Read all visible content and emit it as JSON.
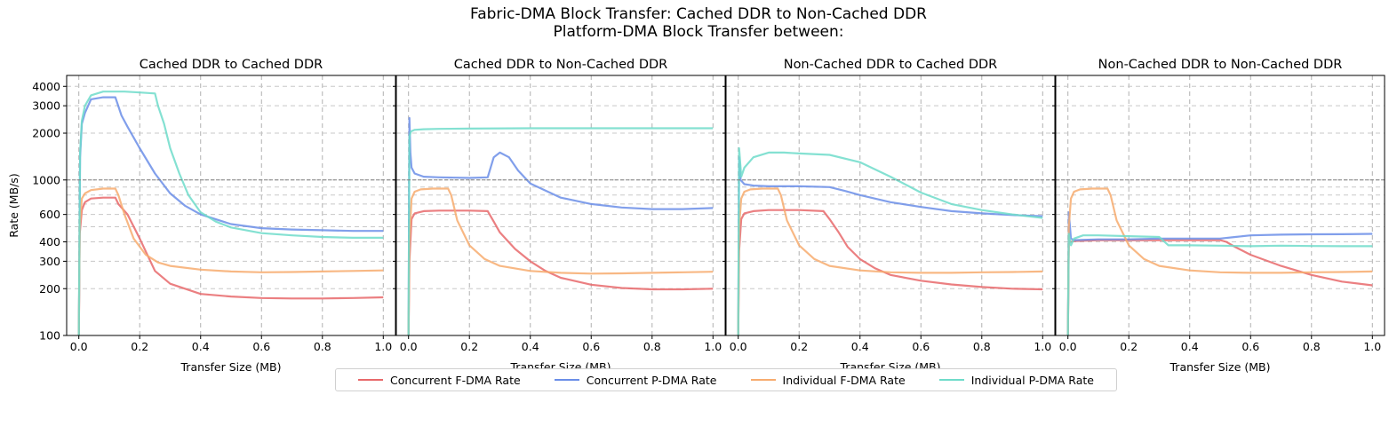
{
  "figure": {
    "title_line1": "Fabric-DMA Block Transfer: Cached DDR to Non-Cached DDR",
    "title_line2": "Platform-DMA Block Transfer between:"
  },
  "colors": {
    "concurrent_fdma": "#e8696b",
    "concurrent_pdma": "#6b8ee8",
    "individual_fdma": "#f7ac6f",
    "individual_pdma": "#6fdcca"
  },
  "chart_data": [
    {
      "type": "line",
      "title": "Cached DDR to Cached DDR",
      "xlabel": "Transfer Size (MB)",
      "ylabel": "Rate (MB/s)",
      "xlim": [
        -0.04,
        1.04
      ],
      "ylim": [
        100,
        4700
      ],
      "yscale": "log",
      "grid": true,
      "reference_line": 1000,
      "xticks": [
        "0.0",
        "0.2",
        "0.4",
        "0.6",
        "0.8",
        "1.0"
      ],
      "yticks": [
        "100",
        "200",
        "300",
        "400",
        "600",
        "1000",
        "2000",
        "3000",
        "4000"
      ],
      "series": [
        {
          "name": "Concurrent F-DMA Rate",
          "x": [
            0,
            0.003,
            0.01,
            0.02,
            0.04,
            0.08,
            0.12,
            0.13,
            0.16,
            0.2,
            0.25,
            0.3,
            0.4,
            0.5,
            0.6,
            0.7,
            0.8,
            0.9,
            1.0
          ],
          "y": [
            100,
            450,
            640,
            720,
            760,
            770,
            770,
            700,
            600,
            420,
            260,
            215,
            185,
            178,
            174,
            173,
            173,
            174,
            176
          ]
        },
        {
          "name": "Concurrent P-DMA Rate",
          "x": [
            0,
            0.004,
            0.01,
            0.02,
            0.04,
            0.08,
            0.12,
            0.14,
            0.16,
            0.2,
            0.25,
            0.3,
            0.35,
            0.4,
            0.5,
            0.6,
            0.7,
            0.8,
            0.9,
            1.0
          ],
          "y": [
            100,
            1400,
            2300,
            2700,
            3300,
            3400,
            3400,
            2600,
            2200,
            1600,
            1100,
            820,
            680,
            600,
            520,
            490,
            480,
            475,
            470,
            470
          ]
        },
        {
          "name": "Individual F-DMA Rate",
          "x": [
            0,
            0.003,
            0.01,
            0.02,
            0.04,
            0.08,
            0.12,
            0.13,
            0.15,
            0.18,
            0.22,
            0.26,
            0.3,
            0.4,
            0.5,
            0.6,
            0.7,
            0.8,
            0.9,
            1.0
          ],
          "y": [
            100,
            500,
            760,
            820,
            860,
            880,
            880,
            800,
            600,
            420,
            330,
            295,
            280,
            265,
            258,
            255,
            256,
            258,
            260,
            262
          ]
        },
        {
          "name": "Individual P-DMA Rate",
          "x": [
            0,
            0.004,
            0.01,
            0.02,
            0.04,
            0.08,
            0.15,
            0.2,
            0.25,
            0.26,
            0.28,
            0.3,
            0.33,
            0.36,
            0.4,
            0.45,
            0.5,
            0.6,
            0.7,
            0.8,
            0.9,
            1.0
          ],
          "y": [
            100,
            1500,
            2400,
            3000,
            3500,
            3700,
            3700,
            3650,
            3600,
            3000,
            2300,
            1600,
            1100,
            800,
            620,
            540,
            495,
            455,
            440,
            430,
            425,
            425
          ]
        }
      ]
    },
    {
      "type": "line",
      "title": "Cached DDR to Non-Cached DDR",
      "xlabel": "Transfer Size (MB)",
      "ylabel": "",
      "xlim": [
        -0.04,
        1.04
      ],
      "ylim": [
        100,
        4700
      ],
      "yscale": "log",
      "grid": true,
      "reference_line": 1000,
      "xticks": [
        "0.0",
        "0.2",
        "0.4",
        "0.6",
        "0.8",
        "1.0"
      ],
      "yticks": [],
      "series": [
        {
          "name": "Concurrent F-DMA Rate",
          "x": [
            0,
            0.003,
            0.01,
            0.02,
            0.05,
            0.1,
            0.2,
            0.26,
            0.28,
            0.3,
            0.35,
            0.4,
            0.45,
            0.5,
            0.6,
            0.7,
            0.8,
            0.9,
            1.0
          ],
          "y": [
            100,
            300,
            560,
            610,
            630,
            635,
            635,
            630,
            540,
            460,
            360,
            300,
            260,
            235,
            212,
            202,
            198,
            198,
            200
          ]
        },
        {
          "name": "Concurrent P-DMA Rate",
          "x": [
            0,
            0.003,
            0.006,
            0.01,
            0.02,
            0.05,
            0.1,
            0.2,
            0.26,
            0.28,
            0.3,
            0.33,
            0.36,
            0.4,
            0.5,
            0.6,
            0.7,
            0.8,
            0.9,
            1.0
          ],
          "y": [
            100,
            2500,
            1500,
            1200,
            1100,
            1050,
            1040,
            1030,
            1040,
            1400,
            1500,
            1400,
            1150,
            950,
            770,
            700,
            665,
            650,
            650,
            660
          ]
        },
        {
          "name": "Individual F-DMA Rate",
          "x": [
            0,
            0.003,
            0.01,
            0.02,
            0.04,
            0.08,
            0.13,
            0.14,
            0.16,
            0.2,
            0.25,
            0.3,
            0.4,
            0.5,
            0.6,
            0.7,
            0.8,
            0.9,
            1.0
          ],
          "y": [
            100,
            400,
            760,
            840,
            870,
            880,
            880,
            800,
            550,
            380,
            310,
            280,
            260,
            253,
            250,
            251,
            253,
            255,
            257
          ]
        },
        {
          "name": "Individual P-DMA Rate",
          "x": [
            0,
            0.003,
            0.008,
            0.02,
            0.05,
            0.1,
            0.2,
            0.4,
            0.6,
            0.8,
            1.0
          ],
          "y": [
            100,
            1900,
            2050,
            2100,
            2120,
            2130,
            2140,
            2150,
            2150,
            2150,
            2150
          ]
        }
      ]
    },
    {
      "type": "line",
      "title": "Non-Cached DDR to Cached DDR",
      "xlabel": "Transfer Size (MB)",
      "ylabel": "",
      "xlim": [
        -0.04,
        1.04
      ],
      "ylim": [
        100,
        4700
      ],
      "yscale": "log",
      "grid": true,
      "reference_line": 1000,
      "xticks": [
        "0.0",
        "0.2",
        "0.4",
        "0.6",
        "0.8",
        "1.0"
      ],
      "yticks": [],
      "series": [
        {
          "name": "Concurrent F-DMA Rate",
          "x": [
            0,
            0.003,
            0.01,
            0.02,
            0.05,
            0.1,
            0.2,
            0.28,
            0.3,
            0.33,
            0.36,
            0.4,
            0.45,
            0.5,
            0.6,
            0.7,
            0.8,
            0.9,
            1.0
          ],
          "y": [
            100,
            350,
            560,
            610,
            630,
            640,
            640,
            630,
            560,
            460,
            370,
            310,
            270,
            245,
            225,
            213,
            205,
            200,
            198
          ]
        },
        {
          "name": "Concurrent P-DMA Rate",
          "x": [
            0,
            0.003,
            0.008,
            0.02,
            0.05,
            0.1,
            0.2,
            0.3,
            0.35,
            0.4,
            0.5,
            0.6,
            0.7,
            0.8,
            0.9,
            1.0
          ],
          "y": [
            100,
            1400,
            1000,
            940,
            920,
            910,
            910,
            900,
            850,
            800,
            720,
            670,
            630,
            610,
            595,
            585
          ]
        },
        {
          "name": "Individual F-DMA Rate",
          "x": [
            0,
            0.003,
            0.01,
            0.02,
            0.04,
            0.08,
            0.13,
            0.14,
            0.16,
            0.2,
            0.25,
            0.3,
            0.4,
            0.5,
            0.6,
            0.7,
            0.8,
            0.9,
            1.0
          ],
          "y": [
            100,
            500,
            760,
            840,
            870,
            880,
            880,
            800,
            550,
            380,
            310,
            280,
            262,
            255,
            253,
            253,
            255,
            256,
            258
          ]
        },
        {
          "name": "Individual P-DMA Rate",
          "x": [
            0,
            0.003,
            0.01,
            0.02,
            0.05,
            0.1,
            0.15,
            0.2,
            0.3,
            0.4,
            0.5,
            0.6,
            0.7,
            0.8,
            0.9,
            1.0
          ],
          "y": [
            100,
            1600,
            1050,
            1200,
            1400,
            1500,
            1500,
            1480,
            1450,
            1300,
            1050,
            830,
            700,
            640,
            600,
            570
          ]
        }
      ]
    },
    {
      "type": "line",
      "title": "Non-Cached DDR to Non-Cached DDR",
      "xlabel": "Transfer Size (MB)",
      "ylabel": "",
      "xlim": [
        -0.04,
        1.04
      ],
      "ylim": [
        100,
        4700
      ],
      "yscale": "log",
      "grid": true,
      "reference_line": 1000,
      "xticks": [
        "0.0",
        "0.2",
        "0.4",
        "0.6",
        "0.8",
        "1.0"
      ],
      "yticks": [],
      "series": [
        {
          "name": "Concurrent F-DMA Rate",
          "x": [
            0,
            0.003,
            0.01,
            0.02,
            0.1,
            0.3,
            0.5,
            0.52,
            0.55,
            0.6,
            0.7,
            0.8,
            0.9,
            1.0
          ],
          "y": [
            100,
            400,
            400,
            405,
            410,
            410,
            410,
            400,
            370,
            330,
            280,
            245,
            222,
            210
          ]
        },
        {
          "name": "Concurrent P-DMA Rate",
          "x": [
            0,
            0.003,
            0.01,
            0.02,
            0.1,
            0.2,
            0.3,
            0.4,
            0.5,
            0.55,
            0.6,
            0.7,
            0.8,
            0.9,
            1.0
          ],
          "y": [
            100,
            620,
            420,
            410,
            415,
            415,
            420,
            420,
            420,
            430,
            440,
            445,
            447,
            448,
            450
          ]
        },
        {
          "name": "Individual F-DMA Rate",
          "x": [
            0,
            0.003,
            0.01,
            0.02,
            0.04,
            0.08,
            0.13,
            0.14,
            0.16,
            0.2,
            0.25,
            0.3,
            0.4,
            0.5,
            0.6,
            0.7,
            0.8,
            0.9,
            1.0
          ],
          "y": [
            100,
            500,
            760,
            840,
            870,
            880,
            880,
            800,
            550,
            380,
            310,
            280,
            262,
            255,
            253,
            253,
            255,
            256,
            258
          ]
        },
        {
          "name": "Individual P-DMA Rate",
          "x": [
            0,
            0.003,
            0.01,
            0.02,
            0.05,
            0.1,
            0.2,
            0.3,
            0.33,
            0.4,
            0.5,
            0.6,
            0.7,
            0.8,
            0.9,
            1.0
          ],
          "y": [
            100,
            450,
            380,
            420,
            440,
            440,
            435,
            430,
            380,
            380,
            378,
            375,
            378,
            376,
            375,
            375
          ]
        }
      ]
    }
  ]
}
